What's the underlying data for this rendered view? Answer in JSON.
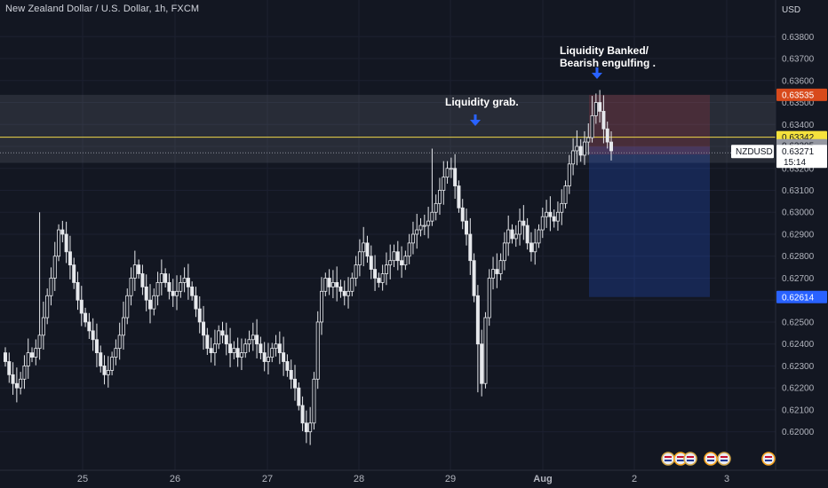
{
  "header": {
    "title": "New Zealand Dollar / U.S. Dollar, 1h, FXCM",
    "currency": "USD"
  },
  "chart_data": {
    "type": "candlestick",
    "symbol": "NZDUSD",
    "title": "New Zealand Dollar / U.S. Dollar, 1h, FXCM",
    "ylabel": "USD",
    "ylim": [
      0.6193,
      0.63878
    ],
    "y_ticks": [
      "0.63800",
      "0.63700",
      "0.63600",
      "0.63500",
      "0.63400",
      "0.63300",
      "0.63200",
      "0.63100",
      "0.63000",
      "0.62900",
      "0.62800",
      "0.62700",
      "0.62600",
      "0.62500",
      "0.62400",
      "0.62300",
      "0.62200",
      "0.62100",
      "0.62000"
    ],
    "x_ticks": [
      "25",
      "26",
      "27",
      "28",
      "29",
      "Aug",
      "2",
      "3"
    ],
    "price_labels": {
      "stop": "0.63535",
      "entry": "0.63342",
      "gray": "0.63305",
      "current": "0.63271",
      "countdown": "15:14",
      "target": "0.62614"
    },
    "levels": {
      "zone_top": 0.63535,
      "zone_bottom": 0.63225,
      "yellow_line": 0.63342,
      "current": 0.63271,
      "target": 0.62614
    },
    "annotations": [
      {
        "text_lines": [
          "Liquidity grab."
        ],
        "at_price": 0.63305,
        "day": "29"
      },
      {
        "text_lines": [
          "Liquidity Banked/",
          "Bearish engulfing ."
        ],
        "at_price": 0.63535,
        "day": "Aug"
      }
    ],
    "closes": [
      0.6232,
      0.6226,
      0.6222,
      0.622,
      0.6224,
      0.623,
      0.6236,
      0.6234,
      0.6238,
      0.6244,
      0.6252,
      0.6262,
      0.627,
      0.628,
      0.6292,
      0.629,
      0.6282,
      0.6276,
      0.6268,
      0.626,
      0.6254,
      0.625,
      0.6246,
      0.6242,
      0.6236,
      0.623,
      0.6226,
      0.6228,
      0.6234,
      0.6238,
      0.6244,
      0.6252,
      0.6262,
      0.627,
      0.6276,
      0.6272,
      0.6266,
      0.626,
      0.6256,
      0.6262,
      0.6268,
      0.6272,
      0.6268,
      0.6264,
      0.6262,
      0.6264,
      0.6268,
      0.627,
      0.6266,
      0.6262,
      0.6256,
      0.625,
      0.6244,
      0.6238,
      0.6236,
      0.624,
      0.6246,
      0.6244,
      0.624,
      0.6236,
      0.6238,
      0.6234,
      0.6236,
      0.624,
      0.6242,
      0.6244,
      0.624,
      0.6236,
      0.6232,
      0.6234,
      0.6238,
      0.624,
      0.6236,
      0.6232,
      0.6228,
      0.6224,
      0.622,
      0.6212,
      0.6204,
      0.62,
      0.6204,
      0.6224,
      0.625,
      0.6264,
      0.627,
      0.6266,
      0.6268,
      0.6266,
      0.6264,
      0.6262,
      0.6264,
      0.627,
      0.6276,
      0.6282,
      0.6286,
      0.628,
      0.6274,
      0.627,
      0.6268,
      0.6272,
      0.6276,
      0.6278,
      0.6282,
      0.6278,
      0.6276,
      0.628,
      0.6286,
      0.629,
      0.6292,
      0.6294,
      0.6294,
      0.6296,
      0.63,
      0.6304,
      0.631,
      0.6316,
      0.632,
      0.632,
      0.6312,
      0.6302,
      0.6296,
      0.629,
      0.6278,
      0.6262,
      0.624,
      0.6222,
      0.6252,
      0.627,
      0.6274,
      0.6272,
      0.6278,
      0.6286,
      0.6292,
      0.6288,
      0.629,
      0.6296,
      0.6294,
      0.6286,
      0.6282,
      0.6286,
      0.6292,
      0.6298,
      0.63,
      0.6298,
      0.6296,
      0.63,
      0.6304,
      0.6312,
      0.6322,
      0.6328,
      0.633,
      0.6326,
      0.6332,
      0.6334,
      0.6344,
      0.635,
      0.6346,
      0.6338,
      0.6332,
      0.6328
    ]
  }
}
